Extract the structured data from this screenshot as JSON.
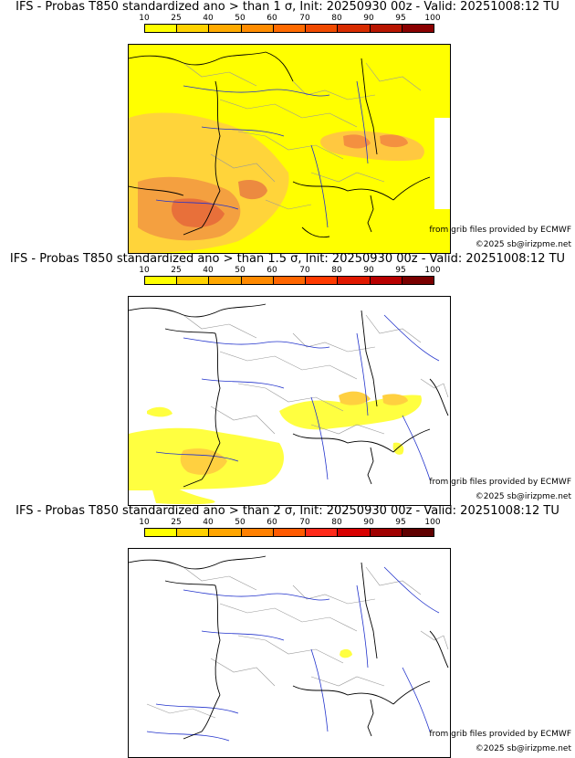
{
  "colorbar": {
    "ticks": [
      "10",
      "25",
      "40",
      "50",
      "60",
      "70",
      "80",
      "90",
      "95",
      "100"
    ],
    "colors_panel1": [
      "#ffff00",
      "#ffd200",
      "#ffaa00",
      "#ff8c00",
      "#ff6a00",
      "#f04a00",
      "#d82c00",
      "#b81500",
      "#8a0000"
    ],
    "colors_panel2": [
      "#ffff00",
      "#ffd200",
      "#ffa800",
      "#ff8a00",
      "#ff6600",
      "#ff3a00",
      "#e01800",
      "#b80000",
      "#7a0000"
    ],
    "colors_panel3": [
      "#ffff00",
      "#ffd000",
      "#ffa500",
      "#ff8000",
      "#ff5a00",
      "#ff2a1a",
      "#d80000",
      "#a00000",
      "#600000"
    ]
  },
  "panels": [
    {
      "title": "IFS - Probas T850  standardized ano > than 1 σ, Init: 20250930 00z - Valid: 20251008:12 TU",
      "credit_source": "from grib files provided by ECMWF",
      "credit_copyright": "©2025 sb@irizpme.net"
    },
    {
      "title": "IFS - Probas T850  standardized ano > than 1.5 σ, Init: 20250930 00z - Valid: 20251008:12 TU",
      "credit_source": "from grib files provided by ECMWF",
      "credit_copyright": "©2025 sb@irizpme.net"
    },
    {
      "title": "IFS - Probas T850  standardized ano > than 2 σ, Init: 20250930 00z - Valid: 20251008:12 TU",
      "credit_source": "from grib files provided by ECMWF",
      "credit_copyright": "©2025 sb@irizpme.net"
    }
  ],
  "colors": {
    "coast": "#000000",
    "borders": "#999999",
    "rivers": "#2233cc",
    "yellow": "#ffff00",
    "orange": "#ffc000",
    "deep": "#ff7a00"
  }
}
